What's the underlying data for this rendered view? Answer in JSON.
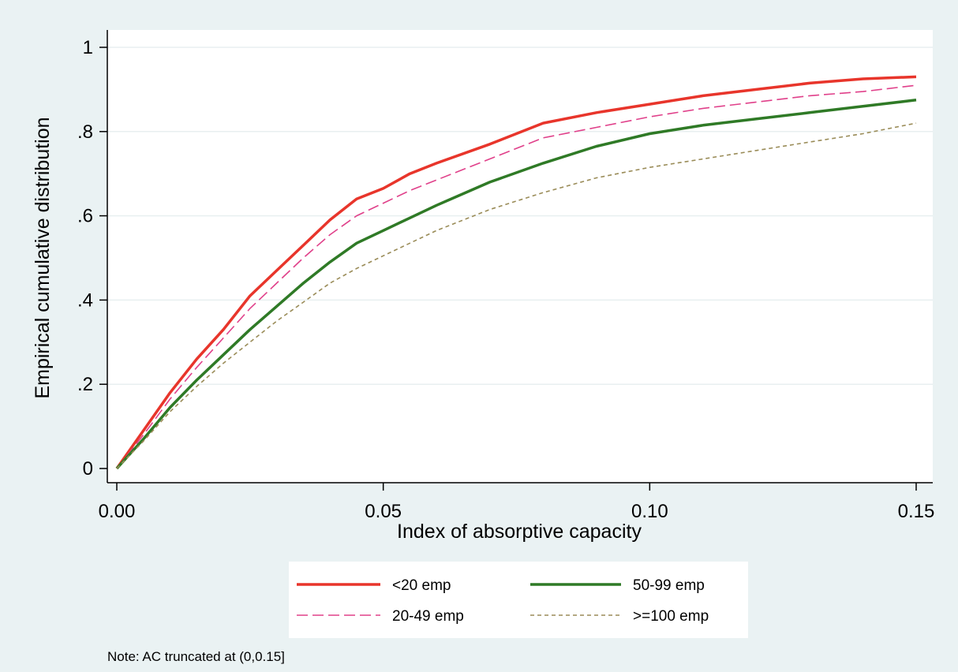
{
  "chart_data": {
    "type": "line",
    "title": "",
    "xlabel": "Index of absorptive capacity",
    "ylabel": "Empirical cumulative distribution",
    "xlim": [
      0,
      0.15
    ],
    "ylim": [
      0,
      1
    ],
    "x_ticks": [
      {
        "value": 0,
        "label": "0.00"
      },
      {
        "value": 0.05,
        "label": "0.05"
      },
      {
        "value": 0.1,
        "label": "0.10"
      },
      {
        "value": 0.15,
        "label": "0.15"
      }
    ],
    "y_ticks": [
      {
        "value": 0,
        "label": "0"
      },
      {
        "value": 0.2,
        "label": ".2"
      },
      {
        "value": 0.4,
        "label": ".4"
      },
      {
        "value": 0.6,
        "label": ".6"
      },
      {
        "value": 0.8,
        "label": ".8"
      },
      {
        "value": 1,
        "label": "1"
      }
    ],
    "grid": "horizontal",
    "legend_position": "bottom",
    "series": [
      {
        "name": "<20 emp",
        "color": "#e8352b",
        "style": "solid-thick",
        "points": [
          [
            0,
            0
          ],
          [
            0.005,
            0.09
          ],
          [
            0.01,
            0.18
          ],
          [
            0.015,
            0.26
          ],
          [
            0.02,
            0.33
          ],
          [
            0.025,
            0.41
          ],
          [
            0.03,
            0.47
          ],
          [
            0.035,
            0.53
          ],
          [
            0.04,
            0.59
          ],
          [
            0.045,
            0.64
          ],
          [
            0.05,
            0.665
          ],
          [
            0.055,
            0.7
          ],
          [
            0.06,
            0.725
          ],
          [
            0.07,
            0.77
          ],
          [
            0.08,
            0.82
          ],
          [
            0.09,
            0.845
          ],
          [
            0.1,
            0.865
          ],
          [
            0.11,
            0.885
          ],
          [
            0.12,
            0.9
          ],
          [
            0.13,
            0.915
          ],
          [
            0.14,
            0.925
          ],
          [
            0.15,
            0.93
          ]
        ]
      },
      {
        "name": "20-49 emp",
        "color": "#e0408a",
        "style": "long-dash-thin",
        "points": [
          [
            0,
            0
          ],
          [
            0.005,
            0.08
          ],
          [
            0.01,
            0.165
          ],
          [
            0.015,
            0.24
          ],
          [
            0.02,
            0.31
          ],
          [
            0.025,
            0.38
          ],
          [
            0.03,
            0.44
          ],
          [
            0.035,
            0.5
          ],
          [
            0.04,
            0.555
          ],
          [
            0.045,
            0.6
          ],
          [
            0.05,
            0.63
          ],
          [
            0.055,
            0.66
          ],
          [
            0.06,
            0.685
          ],
          [
            0.07,
            0.735
          ],
          [
            0.08,
            0.785
          ],
          [
            0.09,
            0.81
          ],
          [
            0.1,
            0.835
          ],
          [
            0.11,
            0.855
          ],
          [
            0.12,
            0.87
          ],
          [
            0.13,
            0.885
          ],
          [
            0.14,
            0.895
          ],
          [
            0.15,
            0.91
          ]
        ]
      },
      {
        "name": "50-99 emp",
        "color": "#2f7a26",
        "style": "solid-thick",
        "points": [
          [
            0,
            0
          ],
          [
            0.005,
            0.07
          ],
          [
            0.01,
            0.145
          ],
          [
            0.015,
            0.21
          ],
          [
            0.02,
            0.27
          ],
          [
            0.025,
            0.33
          ],
          [
            0.03,
            0.385
          ],
          [
            0.035,
            0.44
          ],
          [
            0.04,
            0.49
          ],
          [
            0.045,
            0.535
          ],
          [
            0.05,
            0.565
          ],
          [
            0.055,
            0.595
          ],
          [
            0.06,
            0.625
          ],
          [
            0.07,
            0.68
          ],
          [
            0.08,
            0.725
          ],
          [
            0.09,
            0.765
          ],
          [
            0.1,
            0.795
          ],
          [
            0.11,
            0.815
          ],
          [
            0.12,
            0.83
          ],
          [
            0.13,
            0.845
          ],
          [
            0.14,
            0.86
          ],
          [
            0.15,
            0.875
          ]
        ]
      },
      {
        "name": ">=100 emp",
        "color": "#9a8c58",
        "style": "short-dash-thin",
        "points": [
          [
            0,
            0
          ],
          [
            0.005,
            0.065
          ],
          [
            0.01,
            0.135
          ],
          [
            0.015,
            0.195
          ],
          [
            0.02,
            0.25
          ],
          [
            0.025,
            0.3
          ],
          [
            0.03,
            0.35
          ],
          [
            0.035,
            0.395
          ],
          [
            0.04,
            0.44
          ],
          [
            0.045,
            0.475
          ],
          [
            0.05,
            0.505
          ],
          [
            0.055,
            0.535
          ],
          [
            0.06,
            0.565
          ],
          [
            0.07,
            0.615
          ],
          [
            0.08,
            0.655
          ],
          [
            0.09,
            0.69
          ],
          [
            0.1,
            0.715
          ],
          [
            0.11,
            0.735
          ],
          [
            0.12,
            0.755
          ],
          [
            0.13,
            0.775
          ],
          [
            0.14,
            0.795
          ],
          [
            0.15,
            0.82
          ]
        ]
      }
    ],
    "legend_order": [
      0,
      2,
      1,
      3
    ],
    "note": "Note: AC truncated at (0,0.15]"
  }
}
